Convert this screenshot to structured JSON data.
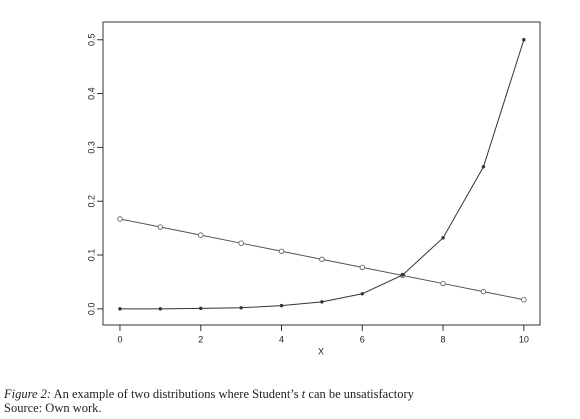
{
  "chart_data": {
    "type": "line",
    "x": [
      0,
      1,
      2,
      3,
      4,
      5,
      6,
      7,
      8,
      9,
      10
    ],
    "series": [
      {
        "color": "#555555",
        "marker": "open",
        "values": [
          0.167,
          0.152,
          0.137,
          0.122,
          0.107,
          0.092,
          0.077,
          0.062,
          0.047,
          0.032,
          0.017
        ]
      },
      {
        "color": "#333333",
        "marker": "filled",
        "values": [
          0,
          0,
          0.001,
          0.002,
          0.006,
          0.013,
          0.028,
          0.063,
          0.132,
          0.264,
          0.5
        ]
      }
    ],
    "xlabel": "X",
    "xlim": [
      -0.42,
      10.4
    ],
    "xticks": [
      0,
      2,
      4,
      6,
      8,
      10
    ],
    "ylim": [
      -0.03,
      0.533
    ],
    "yticks": [
      {
        "value": 0,
        "label": "0.0"
      },
      0.1,
      0.2,
      0.3,
      0.4,
      0.5
    ]
  },
  "caption": {
    "figure": "Figure 2:",
    "text": " An example of two distributions where Student’s ",
    "symbol": "t",
    "rest": " can be unsatisfactory",
    "source": "Source: Own work."
  }
}
